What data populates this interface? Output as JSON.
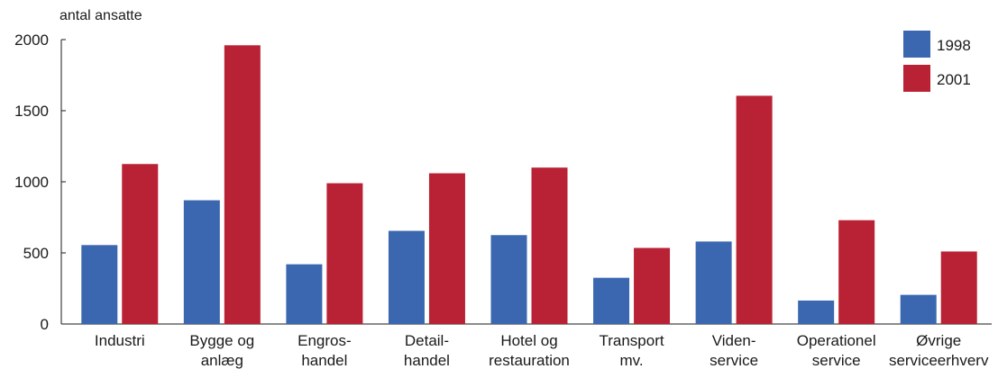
{
  "chart_data": {
    "type": "bar",
    "ylabel": "antal ansatte",
    "ylim": [
      0,
      2000
    ],
    "yticks": [
      0,
      500,
      1000,
      1500,
      2000
    ],
    "grid": false,
    "legend_position": "top-right",
    "categories": [
      [
        "Industri"
      ],
      [
        "Bygge og",
        "anlæg"
      ],
      [
        "Engros-",
        "handel"
      ],
      [
        "Detail-",
        "handel"
      ],
      [
        "Hotel og",
        "restauration"
      ],
      [
        "Transport",
        "mv."
      ],
      [
        "Viden-",
        "service"
      ],
      [
        "Operationel",
        "service"
      ],
      [
        "Øvrige",
        "serviceerhverv"
      ]
    ],
    "series": [
      {
        "name": "1998",
        "color": "#3a67b0",
        "values": [
          555,
          870,
          420,
          655,
          625,
          325,
          580,
          165,
          205
        ]
      },
      {
        "name": "2001",
        "color": "#b92234",
        "values": [
          1125,
          1960,
          990,
          1060,
          1100,
          535,
          1605,
          730,
          510
        ]
      }
    ]
  }
}
